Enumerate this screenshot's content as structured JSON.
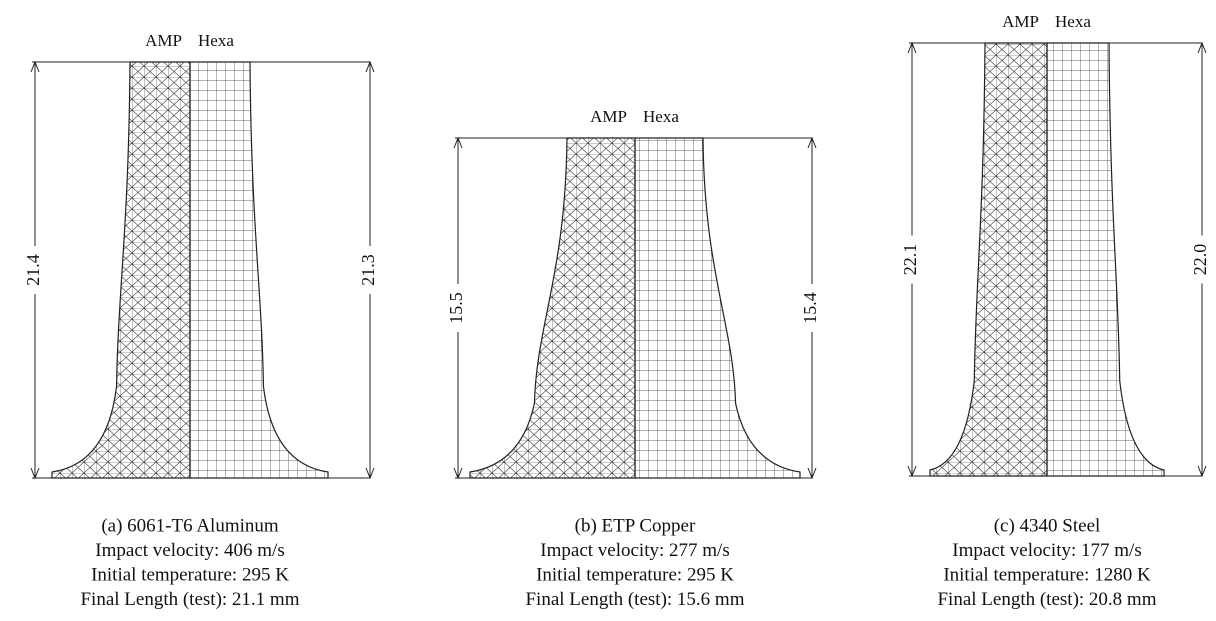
{
  "panels": [
    {
      "left_label": "AMP",
      "right_label": "Hexa",
      "left_length": "21.4",
      "right_length": "21.3",
      "caption": [
        "(a)  6061-T6 Aluminum",
        "Impact velocity: 406 m/s",
        "Initial temperature: 295 K",
        "Final Length (test): 21.1 mm"
      ]
    },
    {
      "left_label": "AMP",
      "right_label": "Hexa",
      "left_length": "15.5",
      "right_length": "15.4",
      "caption": [
        "(b)  ETP Copper",
        "Impact velocity: 277 m/s",
        "Initial temperature: 295 K",
        "Final Length (test): 15.6 mm"
      ]
    },
    {
      "left_label": "AMP",
      "right_label": "Hexa",
      "left_length": "22.1",
      "right_length": "22.0",
      "caption": [
        "(c)  4340 Steel",
        "Impact velocity: 177 m/s",
        "Initial temperature: 1280 K",
        "Final Length (test): 20.8 mm"
      ]
    }
  ]
}
